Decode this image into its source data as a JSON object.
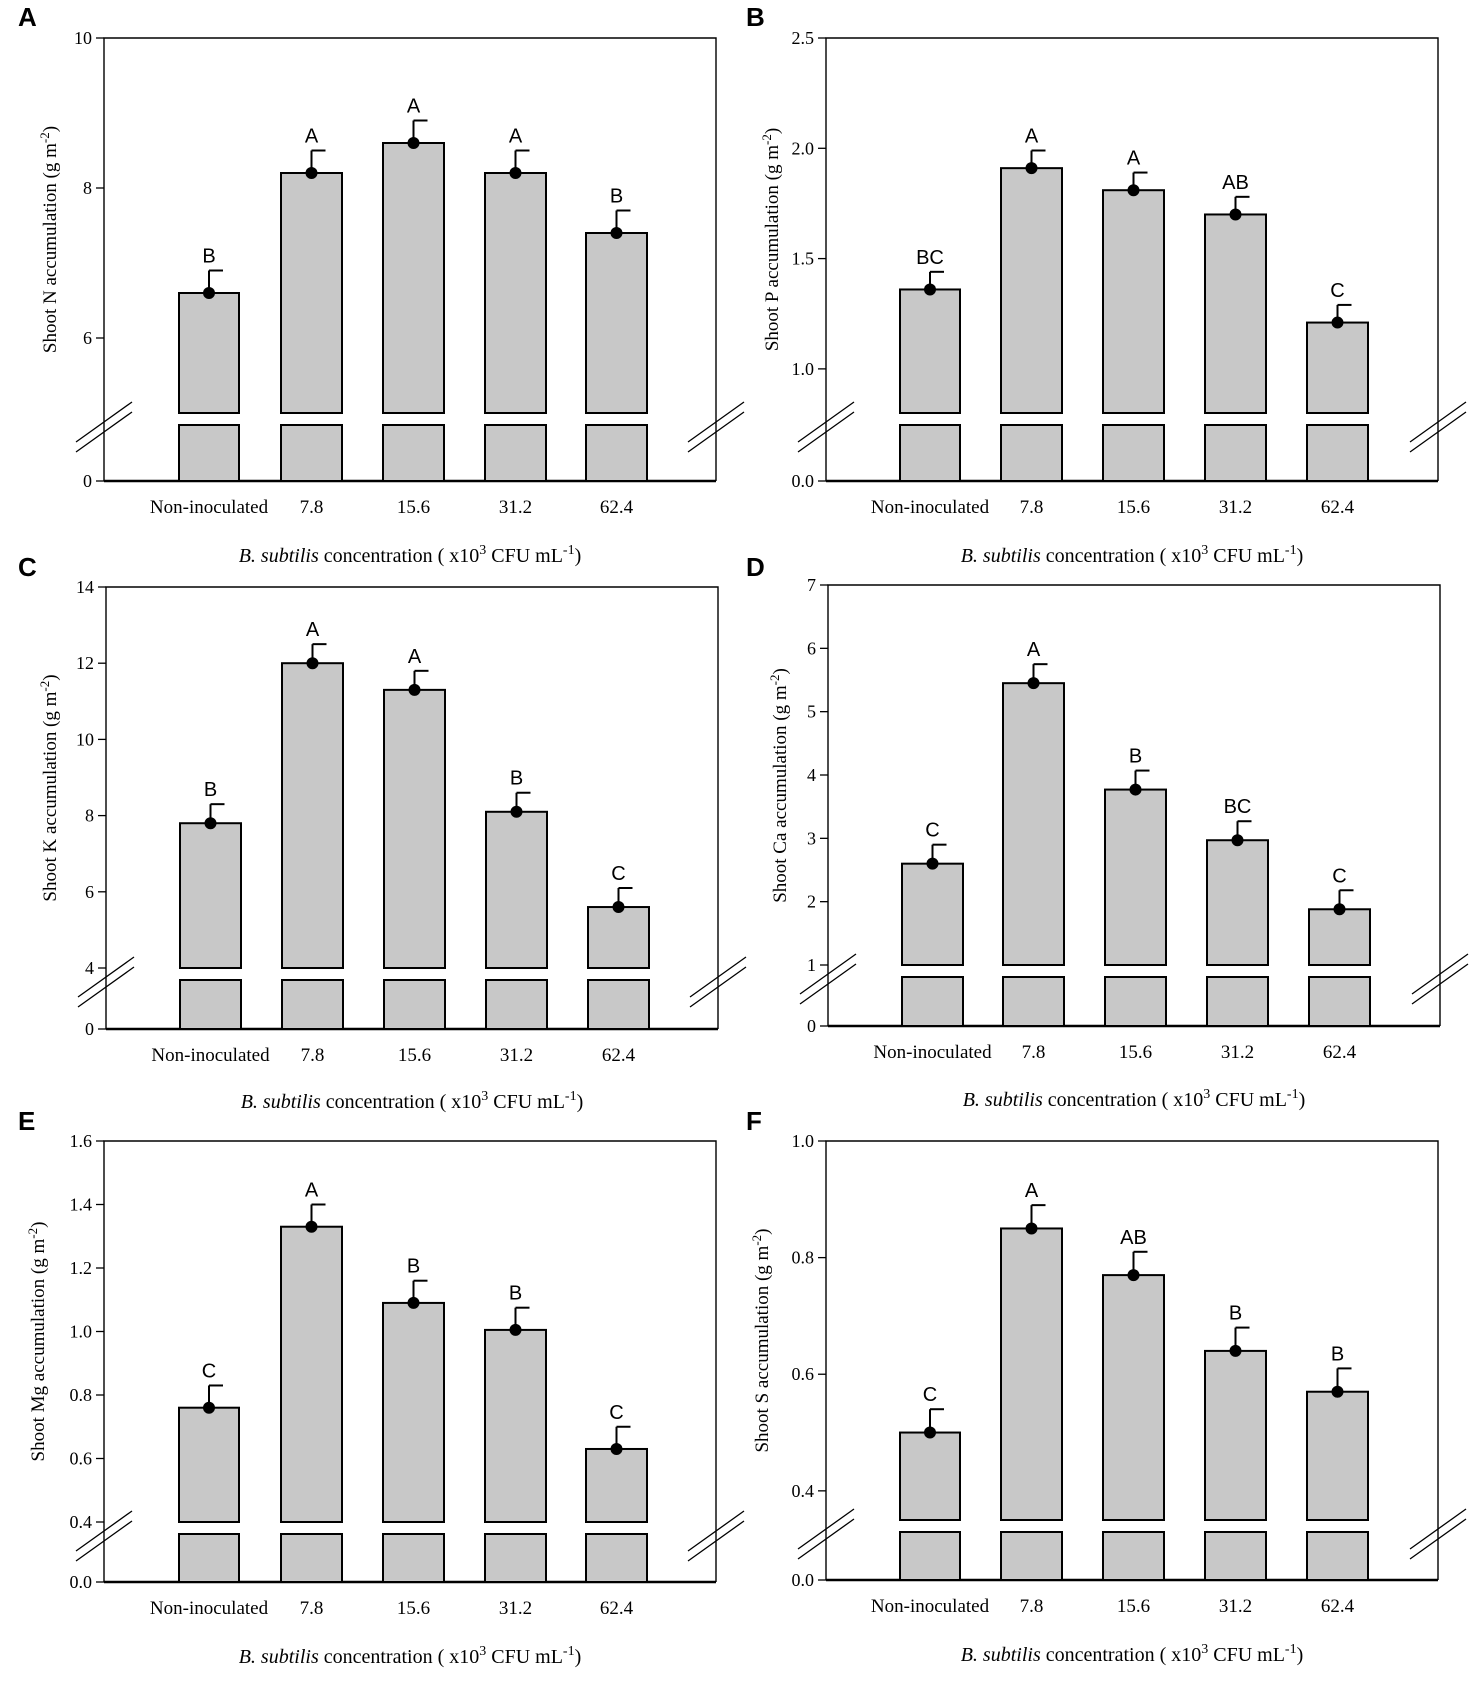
{
  "figure": {
    "xlabel_italic": "B. subtilis",
    "xlabel_main": " concentration ( x10",
    "xlabel_exp": "3",
    "xlabel_unit": " CFU mL",
    "xlabel_unit_exp": "-1",
    "xlabel_close": ")",
    "ylabel_unit": " (g m",
    "ylabel_unit_exp": "-2",
    "ylabel_close": ")"
  },
  "chart_data": [
    {
      "panel": "A",
      "type": "bar",
      "broken_axis": true,
      "ylabel_prefix": "Shoot N accumulation",
      "categories": [
        "Non-inoculated",
        "7.8",
        "15.6",
        "31.2",
        "62.4"
      ],
      "values": [
        6.6,
        8.2,
        8.6,
        8.2,
        7.4
      ],
      "errors": [
        0.3,
        0.3,
        0.3,
        0.3,
        0.3
      ],
      "letters": [
        "B",
        "A",
        "A",
        "A",
        "B"
      ],
      "ylim": [
        5.0,
        10.0
      ],
      "yticks": [
        6,
        8,
        10
      ],
      "ytick_labels": [
        "6",
        "8",
        "10"
      ],
      "zero_label": "0"
    },
    {
      "panel": "B",
      "type": "bar",
      "broken_axis": true,
      "ylabel_prefix": "Shoot P accumulation",
      "categories": [
        "Non-inoculated",
        "7.8",
        "15.6",
        "31.2",
        "62.4"
      ],
      "values": [
        1.36,
        1.91,
        1.81,
        1.7,
        1.21
      ],
      "errors": [
        0.08,
        0.08,
        0.08,
        0.08,
        0.08
      ],
      "letters": [
        "BC",
        "A",
        "A",
        "AB",
        "C"
      ],
      "ylim": [
        0.8,
        2.5
      ],
      "yticks": [
        1.0,
        1.5,
        2.0,
        2.5
      ],
      "ytick_labels": [
        "1.0",
        "1.5",
        "2.0",
        "2.5"
      ],
      "zero_label": "0.0"
    },
    {
      "panel": "C",
      "type": "bar",
      "broken_axis": true,
      "ylabel_prefix": "Shoot K accumulation",
      "categories": [
        "Non-inoculated",
        "7.8",
        "15.6",
        "31.2",
        "62.4"
      ],
      "values": [
        7.8,
        12.0,
        11.3,
        8.1,
        5.6
      ],
      "errors": [
        0.5,
        0.5,
        0.5,
        0.5,
        0.5
      ],
      "letters": [
        "B",
        "A",
        "A",
        "B",
        "C"
      ],
      "ylim": [
        4,
        14
      ],
      "yticks": [
        4,
        6,
        8,
        10,
        12,
        14
      ],
      "ytick_labels": [
        "4",
        "6",
        "8",
        "10",
        "12",
        "14"
      ],
      "zero_label": "0"
    },
    {
      "panel": "D",
      "type": "bar",
      "broken_axis": true,
      "ylabel_prefix": "Shoot Ca accumulation",
      "categories": [
        "Non-inoculated",
        "7.8",
        "15.6",
        "31.2",
        "62.4"
      ],
      "values": [
        2.6,
        5.45,
        3.77,
        2.97,
        1.88
      ],
      "errors": [
        0.3,
        0.3,
        0.3,
        0.3,
        0.3
      ],
      "letters": [
        "C",
        "A",
        "B",
        "BC",
        "C"
      ],
      "ylim": [
        1,
        7
      ],
      "yticks": [
        1,
        2,
        3,
        4,
        5,
        6,
        7
      ],
      "ytick_labels": [
        "1",
        "2",
        "3",
        "4",
        "5",
        "6",
        "7"
      ],
      "zero_label": "0"
    },
    {
      "panel": "E",
      "type": "bar",
      "broken_axis": true,
      "ylabel_prefix": "Shoot Mg accumulation",
      "categories": [
        "Non-inoculated",
        "7.8",
        "15.6",
        "31.2",
        "62.4"
      ],
      "values": [
        0.76,
        1.33,
        1.09,
        1.005,
        0.63
      ],
      "errors": [
        0.07,
        0.07,
        0.07,
        0.07,
        0.07
      ],
      "letters": [
        "C",
        "A",
        "B",
        "B",
        "C"
      ],
      "ylim": [
        0.4,
        1.6
      ],
      "yticks": [
        0.4,
        0.6,
        0.8,
        1.0,
        1.2,
        1.4,
        1.6
      ],
      "ytick_labels": [
        "0.4",
        "0.6",
        "0.8",
        "1.0",
        "1.2",
        "1.4",
        "1.6"
      ],
      "zero_label": "0.0"
    },
    {
      "panel": "F",
      "type": "bar",
      "broken_axis": true,
      "ylabel_prefix": "Shoot S  accumulation",
      "categories": [
        "Non-inoculated",
        "7.8",
        "15.6",
        "31.2",
        "62.4"
      ],
      "values": [
        0.5,
        0.85,
        0.77,
        0.64,
        0.57
      ],
      "errors": [
        0.04,
        0.04,
        0.04,
        0.04,
        0.04
      ],
      "letters": [
        "C",
        "A",
        "AB",
        "B",
        "B"
      ],
      "ylim": [
        0.35,
        1.0
      ],
      "yticks": [
        0.4,
        0.6,
        0.8,
        1.0
      ],
      "ytick_labels": [
        "0.4",
        "0.6",
        "0.8",
        "1.0"
      ],
      "zero_label": "0.0"
    }
  ]
}
